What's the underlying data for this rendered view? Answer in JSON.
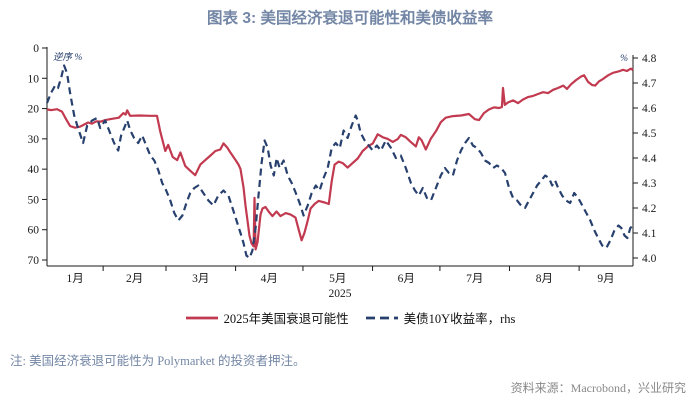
{
  "title": "图表 3: 美国经济衰退可能性和美债收益率",
  "note": "注: 美国经济衰退可能性为 Polymarket 的投资者押注。",
  "source": "资料来源：Macrobond，兴业研究",
  "colors": {
    "title_text": "#7386a5",
    "recession_line": "#c23a50",
    "yield_line": "#27406e",
    "axis": "#1a1a1a",
    "axis_unit_label": "#1f3a66",
    "source_text": "#898989"
  },
  "chart_data": {
    "type": "line",
    "title": "图表 3: 美国经济衰退可能性和美债收益率",
    "year_label": "2025",
    "legend_position": "bottom",
    "grid": false,
    "x_axis": {
      "unit": "month",
      "tick_days": [
        31,
        59,
        90,
        120,
        151,
        181,
        212,
        243
      ],
      "labels": [
        {
          "label": "1月",
          "day": 18.5
        },
        {
          "label": "2月",
          "day": 45
        },
        {
          "label": "3月",
          "day": 74.5
        },
        {
          "label": "4月",
          "day": 105
        },
        {
          "label": "5月",
          "day": 135.5
        },
        {
          "label": "6月",
          "day": 166
        },
        {
          "label": "7月",
          "day": 196.5
        },
        {
          "label": "8月",
          "day": 227.5
        },
        {
          "label": "9月",
          "day": 255
        }
      ],
      "day_range": [
        6,
        267
      ]
    },
    "left_axis": {
      "label": "逆序 %",
      "inverted": true,
      "range": [
        0,
        70
      ],
      "ticks": [
        0,
        10,
        20,
        30,
        40,
        50,
        60,
        70
      ]
    },
    "right_axis": {
      "label": "%",
      "range": [
        4.0,
        4.8
      ],
      "ticks": [
        4.8,
        4.7,
        4.6,
        4.5,
        4.4,
        4.3,
        4.2,
        4.1,
        4.0
      ]
    },
    "series": [
      {
        "name": "2025年美国衰退可能性",
        "axis": "left",
        "style": "solid",
        "color": "#c23a50",
        "points": [
          [
            6,
            20.3
          ],
          [
            8,
            20.5
          ],
          [
            10.5,
            20.2
          ],
          [
            12.7,
            21
          ],
          [
            14.5,
            23.5
          ],
          [
            16.3,
            25.8
          ],
          [
            18.5,
            26.3
          ],
          [
            20.7,
            26
          ],
          [
            22.5,
            25.3
          ],
          [
            24.3,
            24.6
          ],
          [
            26,
            25
          ],
          [
            28,
            24.2
          ],
          [
            30,
            24.3
          ],
          [
            32,
            23.8
          ],
          [
            34,
            23.5
          ],
          [
            38,
            23
          ],
          [
            40,
            21.5
          ],
          [
            41,
            22
          ],
          [
            41.7,
            20.6
          ],
          [
            43,
            22.4
          ],
          [
            47,
            22.3
          ],
          [
            52,
            22.4
          ],
          [
            55,
            22.4
          ],
          [
            56.4,
            27.5
          ],
          [
            58.7,
            34
          ],
          [
            60,
            32
          ],
          [
            62,
            36
          ],
          [
            64,
            37
          ],
          [
            65.4,
            34.5
          ],
          [
            67.6,
            39
          ],
          [
            69.8,
            40.5
          ],
          [
            72,
            42
          ],
          [
            74.3,
            38.5
          ],
          [
            76.5,
            37
          ],
          [
            78.8,
            35.5
          ],
          [
            81,
            34
          ],
          [
            83.2,
            33.5
          ],
          [
            84.6,
            31.5
          ],
          [
            86.4,
            33
          ],
          [
            87.7,
            34.5
          ],
          [
            90,
            37
          ],
          [
            91.3,
            38.5
          ],
          [
            92.2,
            40
          ],
          [
            93.5,
            46
          ],
          [
            94.4,
            52
          ],
          [
            95.3,
            57
          ],
          [
            96.2,
            62
          ],
          [
            97.1,
            64.5
          ],
          [
            98,
            65.5
          ],
          [
            98.4,
            49.5
          ],
          [
            98.9,
            66.5
          ],
          [
            99.8,
            64
          ],
          [
            101.1,
            55
          ],
          [
            102,
            53
          ],
          [
            103.3,
            52.5
          ],
          [
            104.7,
            54
          ],
          [
            106.4,
            55.5
          ],
          [
            108.2,
            54
          ],
          [
            110,
            55.5
          ],
          [
            112.3,
            54.5
          ],
          [
            114.5,
            55
          ],
          [
            116.7,
            56
          ],
          [
            118.1,
            60
          ],
          [
            119.4,
            63.5
          ],
          [
            120.7,
            61
          ],
          [
            122.1,
            57
          ],
          [
            123.4,
            53
          ],
          [
            125.2,
            51.5
          ],
          [
            127,
            50.5
          ],
          [
            129.7,
            51
          ],
          [
            131.5,
            51.5
          ],
          [
            132.8,
            44
          ],
          [
            134.1,
            38.5
          ],
          [
            135.9,
            37.5
          ],
          [
            137.7,
            38
          ],
          [
            139.9,
            39.5
          ],
          [
            142.1,
            38
          ],
          [
            144.4,
            36.5
          ],
          [
            146.6,
            34
          ],
          [
            148.9,
            32.5
          ],
          [
            151.1,
            31.5
          ],
          [
            153.3,
            28.5
          ],
          [
            155.6,
            29.5
          ],
          [
            157.8,
            30
          ],
          [
            160,
            31
          ],
          [
            162.3,
            30
          ],
          [
            163.6,
            28.7
          ],
          [
            165.8,
            29.5
          ],
          [
            168,
            31
          ],
          [
            170.3,
            32.5
          ],
          [
            171.6,
            29.5
          ],
          [
            172.9,
            30.5
          ],
          [
            174.7,
            33.5
          ],
          [
            176.9,
            30
          ],
          [
            179.2,
            27.5
          ],
          [
            181.4,
            24.5
          ],
          [
            183.6,
            23
          ],
          [
            186.8,
            22.5
          ],
          [
            190.4,
            22.3
          ],
          [
            193.9,
            21.8
          ],
          [
            196.6,
            23.5
          ],
          [
            198.4,
            23.8
          ],
          [
            200.6,
            21.5
          ],
          [
            202.8,
            20.3
          ],
          [
            205.1,
            19.6
          ],
          [
            207.3,
            19.8
          ],
          [
            208.6,
            19.5
          ],
          [
            209.1,
            13.2
          ],
          [
            209.9,
            18.8
          ],
          [
            211.3,
            18
          ],
          [
            213.6,
            17.3
          ],
          [
            215.8,
            18.2
          ],
          [
            218,
            17
          ],
          [
            220.2,
            16.2
          ],
          [
            222.5,
            15.8
          ],
          [
            224.7,
            15.2
          ],
          [
            226.9,
            14.6
          ],
          [
            229.2,
            14.9
          ],
          [
            231.4,
            13.8
          ],
          [
            233.6,
            13.2
          ],
          [
            235.9,
            12.4
          ],
          [
            237.6,
            13.5
          ],
          [
            239.4,
            12
          ],
          [
            241.6,
            10.6
          ],
          [
            243.9,
            9.4
          ],
          [
            245.2,
            9
          ],
          [
            247,
            11.2
          ],
          [
            248.7,
            12.2
          ],
          [
            250.1,
            12.4
          ],
          [
            251.9,
            11
          ],
          [
            253.7,
            10.2
          ],
          [
            255.9,
            9
          ],
          [
            258.1,
            8.2
          ],
          [
            260.3,
            7.8
          ],
          [
            262.6,
            7.2
          ],
          [
            264.3,
            7.6
          ],
          [
            266.1,
            6.8
          ],
          [
            267,
            7.3
          ]
        ]
      },
      {
        "name": "美债10Y收益率，rhs",
        "axis": "right",
        "style": "dashed",
        "color": "#27406e",
        "points": [
          [
            6,
            4.62
          ],
          [
            7.8,
            4.66
          ],
          [
            9.6,
            4.69
          ],
          [
            10.9,
            4.68
          ],
          [
            12.3,
            4.72
          ],
          [
            13.6,
            4.77
          ],
          [
            14.9,
            4.74
          ],
          [
            16.3,
            4.66
          ],
          [
            18.1,
            4.57
          ],
          [
            19.8,
            4.52
          ],
          [
            22.1,
            4.46
          ],
          [
            23.9,
            4.53
          ],
          [
            26.1,
            4.55
          ],
          [
            28.3,
            4.56
          ],
          [
            29.7,
            4.52
          ],
          [
            31.9,
            4.55
          ],
          [
            34.1,
            4.5
          ],
          [
            35.9,
            4.46
          ],
          [
            37.7,
            4.43
          ],
          [
            39,
            4.49
          ],
          [
            40.4,
            4.52
          ],
          [
            41.7,
            4.55
          ],
          [
            43.1,
            4.51
          ],
          [
            44.8,
            4.48
          ],
          [
            46.6,
            4.46
          ],
          [
            48.4,
            4.49
          ],
          [
            50.2,
            4.45
          ],
          [
            52,
            4.41
          ],
          [
            53.8,
            4.39
          ],
          [
            55.6,
            4.35
          ],
          [
            57.3,
            4.3
          ],
          [
            59.1,
            4.27
          ],
          [
            60.9,
            4.23
          ],
          [
            62.7,
            4.18
          ],
          [
            64.5,
            4.15
          ],
          [
            66.3,
            4.17
          ],
          [
            68.1,
            4.22
          ],
          [
            69.8,
            4.26
          ],
          [
            71.6,
            4.28
          ],
          [
            73.4,
            4.29
          ],
          [
            75.6,
            4.26
          ],
          [
            77.9,
            4.23
          ],
          [
            80.1,
            4.21
          ],
          [
            82.3,
            4.25
          ],
          [
            84.6,
            4.27
          ],
          [
            86.8,
            4.25
          ],
          [
            88.6,
            4.2
          ],
          [
            90.4,
            4.15
          ],
          [
            92.2,
            4.1
          ],
          [
            93.5,
            4.06
          ],
          [
            94.8,
            4.01
          ],
          [
            96.2,
            4.0
          ],
          [
            97.5,
            4.03
          ],
          [
            98.9,
            4.12
          ],
          [
            100.2,
            4.25
          ],
          [
            101.6,
            4.38
          ],
          [
            102.9,
            4.47
          ],
          [
            104.3,
            4.44
          ],
          [
            105.6,
            4.37
          ],
          [
            107,
            4.33
          ],
          [
            108.3,
            4.4
          ],
          [
            109.6,
            4.36
          ],
          [
            111.4,
            4.39
          ],
          [
            113.2,
            4.33
          ],
          [
            115,
            4.3
          ],
          [
            116.8,
            4.26
          ],
          [
            118.5,
            4.22
          ],
          [
            120.3,
            4.17
          ],
          [
            122.1,
            4.21
          ],
          [
            123.9,
            4.26
          ],
          [
            125.7,
            4.29
          ],
          [
            127.4,
            4.27
          ],
          [
            129.2,
            4.32
          ],
          [
            131,
            4.36
          ],
          [
            132.8,
            4.44
          ],
          [
            134.6,
            4.46
          ],
          [
            136.4,
            4.44
          ],
          [
            138.1,
            4.51
          ],
          [
            139.9,
            4.48
          ],
          [
            141.7,
            4.53
          ],
          [
            143.5,
            4.57
          ],
          [
            144.4,
            4.55
          ],
          [
            145.7,
            4.5
          ],
          [
            147.5,
            4.47
          ],
          [
            149.3,
            4.45
          ],
          [
            151.1,
            4.43
          ],
          [
            152.9,
            4.45
          ],
          [
            154.7,
            4.43
          ],
          [
            156.9,
            4.47
          ],
          [
            159.2,
            4.44
          ],
          [
            161.4,
            4.4
          ],
          [
            163.6,
            4.41
          ],
          [
            165.8,
            4.36
          ],
          [
            168.1,
            4.3
          ],
          [
            169.9,
            4.27
          ],
          [
            171.6,
            4.25
          ],
          [
            173.4,
            4.28
          ],
          [
            175.2,
            4.24
          ],
          [
            177,
            4.23
          ],
          [
            179.2,
            4.28
          ],
          [
            181.4,
            4.33
          ],
          [
            183.2,
            4.36
          ],
          [
            185,
            4.34
          ],
          [
            186.8,
            4.33
          ],
          [
            188.6,
            4.39
          ],
          [
            190.4,
            4.43
          ],
          [
            192.2,
            4.46
          ],
          [
            193.9,
            4.48
          ],
          [
            195.7,
            4.45
          ],
          [
            197.5,
            4.44
          ],
          [
            199.3,
            4.42
          ],
          [
            201.1,
            4.39
          ],
          [
            202.9,
            4.38
          ],
          [
            204.7,
            4.36
          ],
          [
            206.4,
            4.37
          ],
          [
            208.2,
            4.36
          ],
          [
            210,
            4.34
          ],
          [
            211.8,
            4.28
          ],
          [
            213.6,
            4.24
          ],
          [
            215.4,
            4.23
          ],
          [
            217.1,
            4.21
          ],
          [
            218.9,
            4.2
          ],
          [
            220.7,
            4.23
          ],
          [
            222.5,
            4.26
          ],
          [
            224.3,
            4.29
          ],
          [
            226.1,
            4.31
          ],
          [
            227.9,
            4.33
          ],
          [
            229.6,
            4.32
          ],
          [
            231,
            4.29
          ],
          [
            232.3,
            4.31
          ],
          [
            233.7,
            4.28
          ],
          [
            235.4,
            4.25
          ],
          [
            237.2,
            4.23
          ],
          [
            239,
            4.22
          ],
          [
            240.8,
            4.26
          ],
          [
            242.6,
            4.24
          ],
          [
            244.4,
            4.21
          ],
          [
            246.2,
            4.18
          ],
          [
            248,
            4.15
          ],
          [
            249.8,
            4.11
          ],
          [
            251.5,
            4.08
          ],
          [
            253.3,
            4.05
          ],
          [
            255.1,
            4.04
          ],
          [
            256.9,
            4.07
          ],
          [
            258.7,
            4.11
          ],
          [
            260.5,
            4.13
          ],
          [
            261.8,
            4.12
          ],
          [
            263.2,
            4.09
          ],
          [
            264.5,
            4.08
          ],
          [
            265.8,
            4.12
          ],
          [
            267,
            4.13
          ]
        ]
      }
    ]
  }
}
